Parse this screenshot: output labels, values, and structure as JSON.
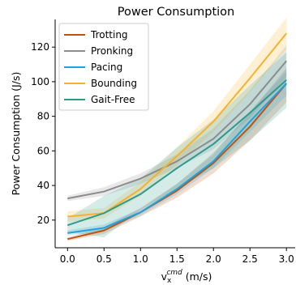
{
  "chart_data": {
    "type": "line",
    "title": "Power Consumption",
    "xlabel_base": "v",
    "xlabel_sub": "x",
    "xlabel_sup": "cmd",
    "xlabel_unit": "(m/s)",
    "ylabel": "Power Consumption (J/s)",
    "x": [
      0.0,
      0.5,
      1.0,
      1.5,
      2.0,
      2.5,
      3.0
    ],
    "xlim": [
      -0.17,
      3.12
    ],
    "ylim": [
      4,
      136
    ],
    "xticks": [
      "0.0",
      "0.5",
      "1.0",
      "1.5",
      "2.0",
      "2.5",
      "3.0"
    ],
    "yticks": [
      "20",
      "40",
      "60",
      "80",
      "100",
      "120"
    ],
    "grid": false,
    "legend_position": "top-left",
    "series": [
      {
        "name": "Trotting",
        "color": "#c0520e",
        "values": [
          9,
          14,
          24.5,
          37,
          53,
          74,
          99
        ],
        "lower": [
          8,
          12,
          22,
          33,
          47,
          66,
          88
        ],
        "upper": [
          10,
          16,
          27,
          41,
          59,
          82,
          108
        ]
      },
      {
        "name": "Pronking",
        "color": "#8c8c8c",
        "values": [
          32.5,
          36.5,
          44,
          54,
          67,
          87,
          112
        ],
        "lower": [
          31,
          34,
          41,
          50,
          61,
          79,
          103
        ],
        "upper": [
          34,
          39,
          47,
          58,
          73,
          95,
          121
        ]
      },
      {
        "name": "Pacing",
        "color": "#1ea3e0",
        "values": [
          12.5,
          15.5,
          24.5,
          38,
          54,
          77,
          99
        ],
        "lower": [
          11,
          13.5,
          22.5,
          35,
          50,
          71,
          92
        ],
        "upper": [
          14,
          17.5,
          26.5,
          41,
          58,
          83,
          106
        ]
      },
      {
        "name": "Bounding",
        "color": "#f5b22d",
        "values": [
          22,
          24,
          38,
          57,
          77,
          102,
          128
        ],
        "lower": [
          19,
          21,
          34,
          52,
          71,
          94,
          119
        ],
        "upper": [
          25,
          27,
          42,
          62,
          83,
          110,
          137
        ]
      },
      {
        "name": "Gait-Free",
        "color": "#2e9a8c",
        "values": [
          17,
          24,
          35,
          50,
          64,
          82,
          101
        ],
        "lower": [
          13,
          10,
          26,
          38,
          50,
          66,
          85
        ],
        "upper": [
          21,
          34,
          44,
          62,
          78,
          98,
          117
        ]
      }
    ]
  }
}
